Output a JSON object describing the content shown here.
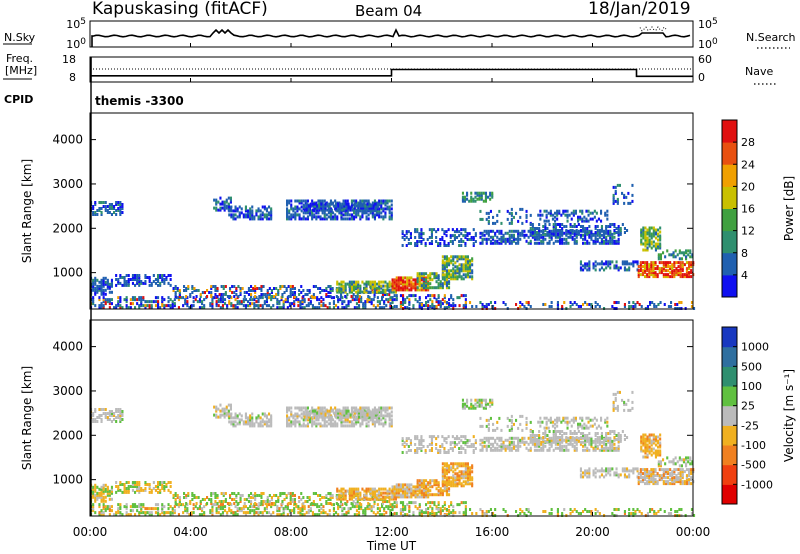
{
  "header": {
    "station": "Kapuskasing (fitACF)",
    "beam": "Beam 04",
    "date": "18/Jan/2019"
  },
  "chart_data": [
    {
      "type": "line",
      "panel": "noise",
      "left_label": "N.Sky",
      "right_label": "N.Search",
      "left_ticks": [
        "10^5",
        "10^0"
      ],
      "right_ticks": [
        "10^5",
        "10^0"
      ],
      "scale": "log"
    },
    {
      "type": "line",
      "panel": "frequency",
      "left_label": "Freq.",
      "left_unit": "[MHz]",
      "right_label": "Nave",
      "left_ticks": [
        18,
        8
      ],
      "right_ticks": [
        60,
        0
      ],
      "series": [
        {
          "name": "Freq.",
          "x": [
            "00:00",
            "12:00",
            "12:00",
            "21:45",
            "21:45",
            "24:00"
          ],
          "values": [
            10.5,
            10.5,
            13,
            13,
            10.3,
            10.3
          ]
        }
      ]
    },
    {
      "type": "table",
      "panel": "cpid",
      "label": "CPID",
      "value": "themis -3300"
    },
    {
      "type": "heatmap",
      "panel": "power",
      "ylabel": "Slant Range [km]",
      "ylim": [
        180,
        4600
      ],
      "yticks": [
        1000,
        2000,
        3000,
        4000
      ],
      "colorbar_label": "Power [dB]",
      "colorbar_ticks": [
        4,
        8,
        12,
        16,
        20,
        24,
        28
      ],
      "colorbar_colors": [
        "#1010f0",
        "#2060b0",
        "#2f8f6f",
        "#40a040",
        "#c9c000",
        "#f0a000",
        "#e85010",
        "#e01010"
      ]
    },
    {
      "type": "heatmap",
      "panel": "velocity",
      "ylabel": "Slant Range [km]",
      "ylim": [
        180,
        4600
      ],
      "yticks": [
        1000,
        2000,
        3000,
        4000
      ],
      "colorbar_label": "Velocity [m s⁻¹]",
      "colorbar_ticks": [
        1000,
        500,
        100,
        25,
        -25,
        -100,
        -500,
        -1000
      ],
      "colorbar_colors": [
        "#1838c0",
        "#2f6f9f",
        "#2f8f6f",
        "#60c040",
        "#bbbbbb",
        "#f0b020",
        "#f08020",
        "#f04010",
        "#e00000"
      ]
    }
  ],
  "xaxis": {
    "label": "Time UT",
    "ticks": [
      "00:00",
      "04:00",
      "08:00",
      "12:00",
      "16:00",
      "20:00",
      "00:00"
    ]
  }
}
